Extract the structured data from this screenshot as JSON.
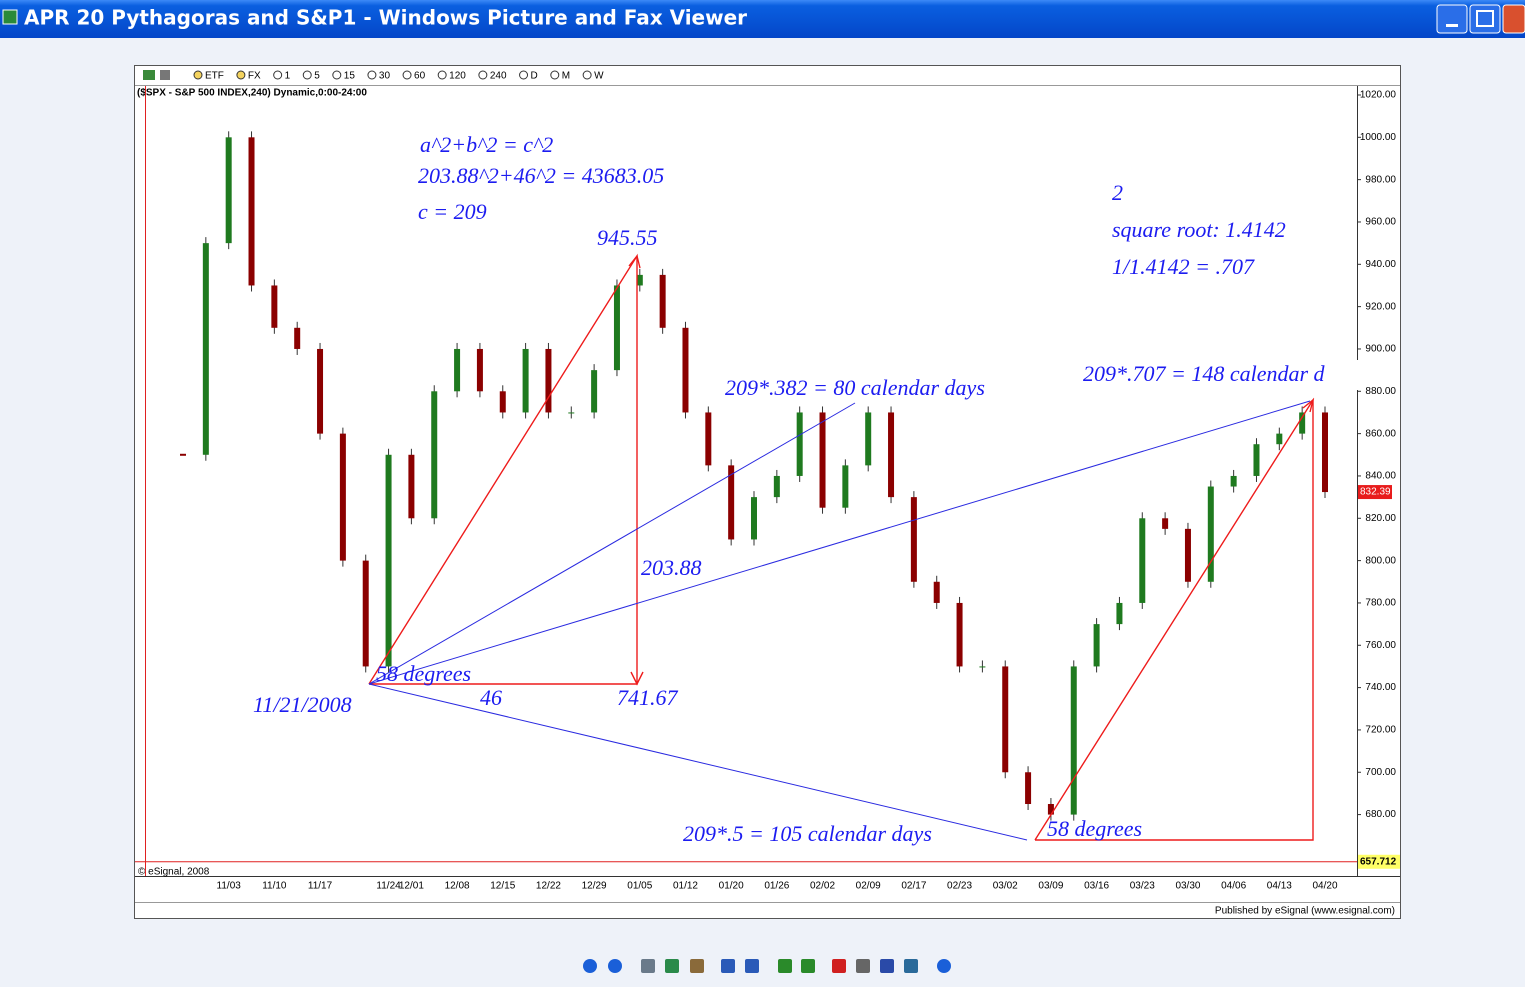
{
  "window": {
    "title": "APR 20 Pythagoras and S&P1 - Windows Picture and Fax Viewer"
  },
  "chart_toolbar": {
    "items": [
      "ETF",
      "FX",
      "1",
      "5",
      "15",
      "30",
      "60",
      "120",
      "240",
      "D",
      "M",
      "W"
    ]
  },
  "chart_header": "($SPX - S&P 500 INDEX,240) Dynamic,0:00-24:00",
  "chart_footer": {
    "copyright": "© eSignal, 2008",
    "published": "Published by eSignal (www.esignal.com)"
  },
  "chart_data": {
    "type": "candlestick",
    "categories": [
      null,
      null,
      "11/03",
      null,
      "11/10",
      null,
      "11/17",
      null,
      null,
      "11/24",
      "12/01",
      null,
      "12/08",
      null,
      "12/15",
      null,
      "12/22",
      null,
      "12/29",
      null,
      "01/05",
      null,
      "01/12",
      null,
      "01/20",
      null,
      "01/26",
      null,
      "02/02",
      null,
      "02/09",
      null,
      "02/17",
      null,
      "02/23",
      null,
      "03/02",
      null,
      "03/09",
      null,
      "03/16",
      null,
      "03/23",
      null,
      "03/30",
      null,
      "04/06",
      null,
      "04/13",
      null,
      "04/20"
    ],
    "values": [
      850,
      950,
      1000,
      930,
      910,
      900,
      860,
      800,
      750,
      850,
      820,
      880,
      900,
      880,
      870,
      900,
      870,
      870,
      890,
      930,
      935,
      910,
      870,
      845,
      810,
      830,
      840,
      870,
      825,
      845,
      870,
      830,
      790,
      780,
      750,
      750,
      700,
      685,
      680,
      750,
      770,
      780,
      820,
      815,
      790,
      835,
      840,
      855,
      860,
      870,
      832.39
    ],
    "up_color": "#1f7a1f",
    "down_color": "#8b0000",
    "ylim": [
      657.6,
      1023.3
    ],
    "yticks": [
      {
        "value": 680,
        "label": "680.00"
      },
      {
        "value": 700,
        "label": "700.00"
      },
      {
        "value": 720,
        "label": "720.00"
      },
      {
        "value": 740,
        "label": "740.00"
      },
      {
        "value": 760,
        "label": "760.00"
      },
      {
        "value": 780,
        "label": "780.00"
      },
      {
        "value": 800,
        "label": "800.00"
      },
      {
        "value": 820,
        "label": "820.00"
      },
      {
        "value": 840,
        "label": "840.00"
      },
      {
        "value": 860,
        "label": "860.00"
      },
      {
        "value": 880,
        "label": "880.00"
      },
      {
        "value": 900,
        "label": "900.00"
      },
      {
        "value": 920,
        "label": "920.00"
      },
      {
        "value": 940,
        "label": "940.00"
      },
      {
        "value": 960,
        "label": "960.00"
      },
      {
        "value": 980,
        "label": "980.00"
      },
      {
        "value": 1000,
        "label": "1000.00"
      },
      {
        "value": 1020,
        "label": "1020.00"
      }
    ],
    "last_price": 832.39,
    "low_level": 657.712
  },
  "annotations": [
    "a^2+b^2 = c^2",
    "203.88^2+46^2 = 43683.05",
    "c = 209",
    "945.55",
    "2",
    "square root: 1.4142",
    "1/1.4142 = .707",
    "209*.382 = 80 calendar days",
    "209*.707 = 148 calendar d",
    "203.88",
    "58 degrees",
    "11/21/2008",
    "46",
    "741.67",
    "209*.5 = 105 calendar days",
    "58 degrees"
  ]
}
